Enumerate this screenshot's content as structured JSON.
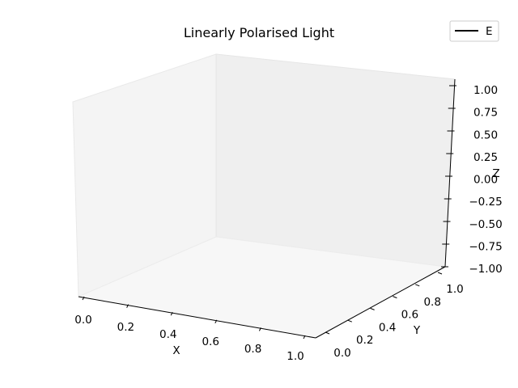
{
  "chart_data": {
    "type": "line",
    "projection": "3d",
    "title": "Linearly Polarised Light",
    "xlabel": "X",
    "ylabel": "Y",
    "zlabel": "Z",
    "xlim": [
      0.0,
      1.0
    ],
    "ylim": [
      0.0,
      1.0
    ],
    "zlim": [
      -1.0,
      1.0
    ],
    "x_ticks": [
      "0.0",
      "0.2",
      "0.4",
      "0.6",
      "0.8",
      "1.0"
    ],
    "y_ticks": [
      "0.0",
      "0.2",
      "0.4",
      "0.6",
      "0.8",
      "1.0"
    ],
    "z_ticks": [
      "1.00",
      "0.75",
      "0.50",
      "0.25",
      "0.00",
      "−0.25",
      "−0.50",
      "−0.75",
      "−1.00"
    ],
    "grid": false,
    "pane_color": "#f2f2f2",
    "legend": {
      "placement": "top-right",
      "entries": [
        {
          "label": "E",
          "color": "#000000"
        }
      ]
    },
    "series": [
      {
        "name": "E",
        "color": "#000000",
        "points": []
      }
    ]
  }
}
